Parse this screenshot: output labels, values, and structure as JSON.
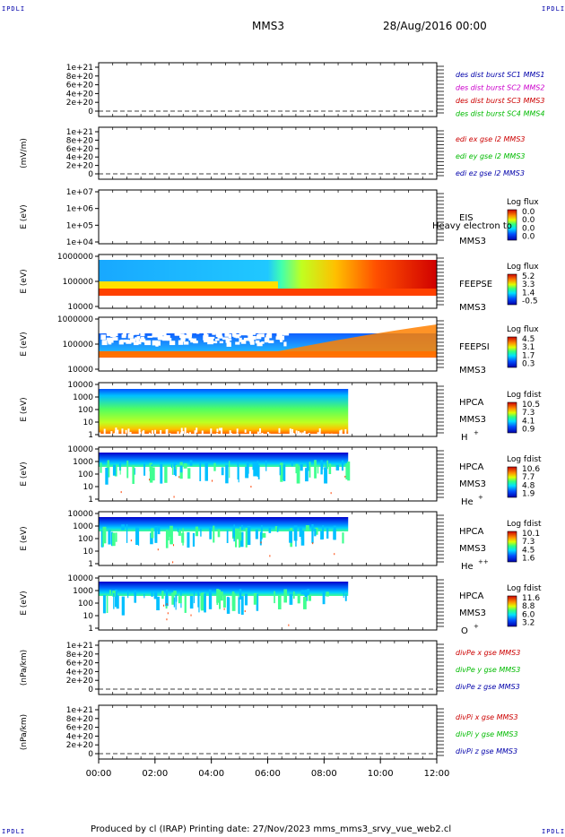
{
  "corners": {
    "tl": "IPDLI",
    "tr": "IPDLI",
    "bl": "IPDLI",
    "br": "IPDLI"
  },
  "header": {
    "spacecraft": "MMS3",
    "datetime": "28/Aug/2016 00:00"
  },
  "footer": {
    "text": "Produced by cl (IRAP)    Printing date: 27/Nov/2023    mms_mms3_srvy_vue_web2.cl"
  },
  "xaxis": {
    "ticks": [
      "00:00",
      "02:00",
      "04:00",
      "06:00",
      "08:00",
      "10:00",
      "12:00"
    ]
  },
  "colors": {
    "red": "#cc0000",
    "magenta": "#cc00cc",
    "green": "#00bb00",
    "blue": "#0000aa"
  },
  "chart_data": [
    {
      "type": "line",
      "id": "p1",
      "ylabel": "",
      "yticks": [
        "1e+21",
        "8e+20",
        "6e+20",
        "4e+20",
        "2e+20",
        "0"
      ],
      "series": [
        {
          "name": "des dist burst SC1 MMS1",
          "color": "#0000aa"
        },
        {
          "name": "des dist burst SC2 MMS2",
          "color": "#cc00cc"
        },
        {
          "name": "des dist burst SC3 MMS3",
          "color": "#cc0000"
        },
        {
          "name": "des dist burst SC4 MMS4",
          "color": "#00bb00"
        }
      ]
    },
    {
      "type": "line",
      "id": "p2",
      "ylabel": "(mV/m)",
      "yticks": [
        "1e+21",
        "8e+20",
        "6e+20",
        "4e+20",
        "2e+20",
        "0"
      ],
      "series": [
        {
          "name": "edi ex gse l2 MMS3",
          "color": "#cc0000"
        },
        {
          "name": "edi ey gse l2 MMS3",
          "color": "#00bb00"
        },
        {
          "name": "edi ez gse l2 MMS3",
          "color": "#0000aa"
        }
      ]
    },
    {
      "type": "heatmap",
      "id": "p3",
      "ylabel": "E (eV)",
      "yticks": [
        "1e+07",
        "1e+06",
        "1e+05",
        "1e+04"
      ],
      "labels": [
        "EIS",
        "MMS3"
      ],
      "overlay": "Heavy electron to",
      "cbar_title": "Log flux",
      "cbar_ticks": [
        "0.0",
        "0.0",
        "0.0",
        "0.0"
      ]
    },
    {
      "type": "heatmap",
      "id": "p4",
      "ylabel": "E (eV)",
      "yticks": [
        "1000000",
        "100000",
        "10000"
      ],
      "labels": [
        "FEEPSE",
        "MMS3"
      ],
      "cbar_title": "Log flux",
      "cbar_ticks": [
        "5.2",
        "3.3",
        "1.4",
        "-0.5"
      ]
    },
    {
      "type": "heatmap",
      "id": "p5",
      "ylabel": "E (eV)",
      "yticks": [
        "1000000",
        "100000",
        "10000"
      ],
      "labels": [
        "FEEPSI",
        "MMS3"
      ],
      "cbar_title": "Log flux",
      "cbar_ticks": [
        "4.5",
        "3.1",
        "1.7",
        "0.3"
      ]
    },
    {
      "type": "heatmap",
      "id": "p6",
      "ylabel": "E (eV)",
      "yticks": [
        "10000",
        "1000",
        "100",
        "10",
        "1"
      ],
      "labels": [
        "HPCA",
        "MMS3"
      ],
      "species": "H",
      "species_sup": "+",
      "cbar_title": "Log fdist",
      "cbar_ticks": [
        "10.5",
        "7.3",
        "4.1",
        "0.9"
      ]
    },
    {
      "type": "heatmap",
      "id": "p7",
      "ylabel": "E (eV)",
      "yticks": [
        "10000",
        "1000",
        "100",
        "10",
        "1"
      ],
      "labels": [
        "HPCA",
        "MMS3"
      ],
      "species": "He",
      "species_sup": "+",
      "cbar_title": "Log fdist",
      "cbar_ticks": [
        "10.6",
        "7.7",
        "4.8",
        "1.9"
      ]
    },
    {
      "type": "heatmap",
      "id": "p8",
      "ylabel": "E (eV)",
      "yticks": [
        "10000",
        "1000",
        "100",
        "10",
        "1"
      ],
      "labels": [
        "HPCA",
        "MMS3"
      ],
      "species": "He",
      "species_sup": "++",
      "cbar_title": "Log fdist",
      "cbar_ticks": [
        "10.1",
        "7.3",
        "4.5",
        "1.6"
      ]
    },
    {
      "type": "heatmap",
      "id": "p9",
      "ylabel": "E (eV)",
      "yticks": [
        "10000",
        "1000",
        "100",
        "10",
        "1"
      ],
      "labels": [
        "HPCA",
        "MMS3"
      ],
      "species": "O",
      "species_sup": "+",
      "cbar_title": "Log fdist",
      "cbar_ticks": [
        "11.6",
        "8.8",
        "6.0",
        "3.2"
      ]
    },
    {
      "type": "line",
      "id": "p10",
      "ylabel": "(nPa/km)",
      "yticks": [
        "1e+21",
        "8e+20",
        "6e+20",
        "4e+20",
        "2e+20",
        "0"
      ],
      "series": [
        {
          "name": "divPe x gse MMS3",
          "color": "#cc0000"
        },
        {
          "name": "divPe y gse MMS3",
          "color": "#00bb00"
        },
        {
          "name": "divPe z gse MMS3",
          "color": "#0000aa"
        }
      ]
    },
    {
      "type": "line",
      "id": "p11",
      "ylabel": "(nPa/km)",
      "yticks": [
        "1e+21",
        "8e+20",
        "6e+20",
        "4e+20",
        "2e+20",
        "0"
      ],
      "series": [
        {
          "name": "divPi x gse MMS3",
          "color": "#cc0000"
        },
        {
          "name": "divPi y gse MMS3",
          "color": "#00bb00"
        },
        {
          "name": "divPi z gse MMS3",
          "color": "#0000aa"
        }
      ]
    }
  ]
}
